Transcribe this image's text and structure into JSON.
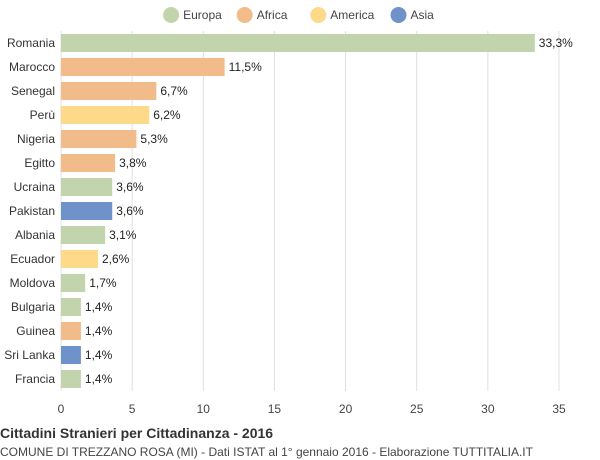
{
  "chart_data": {
    "type": "bar",
    "orientation": "horizontal",
    "title": "Cittadini Stranieri per Cittadinanza - 2016",
    "subtitle": "COMUNE DI TREZZANO ROSA (MI) - Dati ISTAT al 1° gennaio 2016 - Elaborazione TUTTITALIA.IT",
    "legend_position": "top-center",
    "grid": true,
    "xlim": [
      0,
      35
    ],
    "x_ticks": [
      0,
      5,
      10,
      15,
      20,
      25,
      30,
      35
    ],
    "series": [
      {
        "name": "Europa",
        "color": "#c1d4ab"
      },
      {
        "name": "Africa",
        "color": "#f2bb8a"
      },
      {
        "name": "America",
        "color": "#fdd98a"
      },
      {
        "name": "Asia",
        "color": "#7092ca"
      }
    ],
    "bars": [
      {
        "category": "Romania",
        "value": 33.3,
        "label": "33,3%",
        "series": "Europa"
      },
      {
        "category": "Marocco",
        "value": 11.5,
        "label": "11,5%",
        "series": "Africa"
      },
      {
        "category": "Senegal",
        "value": 6.7,
        "label": "6,7%",
        "series": "Africa"
      },
      {
        "category": "Perù",
        "value": 6.2,
        "label": "6,2%",
        "series": "America"
      },
      {
        "category": "Nigeria",
        "value": 5.3,
        "label": "5,3%",
        "series": "Africa"
      },
      {
        "category": "Egitto",
        "value": 3.8,
        "label": "3,8%",
        "series": "Africa"
      },
      {
        "category": "Ucraina",
        "value": 3.6,
        "label": "3,6%",
        "series": "Europa"
      },
      {
        "category": "Pakistan",
        "value": 3.6,
        "label": "3,6%",
        "series": "Asia"
      },
      {
        "category": "Albania",
        "value": 3.1,
        "label": "3,1%",
        "series": "Europa"
      },
      {
        "category": "Ecuador",
        "value": 2.6,
        "label": "2,6%",
        "series": "America"
      },
      {
        "category": "Moldova",
        "value": 1.7,
        "label": "1,7%",
        "series": "Europa"
      },
      {
        "category": "Bulgaria",
        "value": 1.4,
        "label": "1,4%",
        "series": "Europa"
      },
      {
        "category": "Guinea",
        "value": 1.4,
        "label": "1,4%",
        "series": "Africa"
      },
      {
        "category": "Sri Lanka",
        "value": 1.4,
        "label": "1,4%",
        "series": "Asia"
      },
      {
        "category": "Francia",
        "value": 1.4,
        "label": "1,4%",
        "series": "Europa"
      }
    ]
  }
}
